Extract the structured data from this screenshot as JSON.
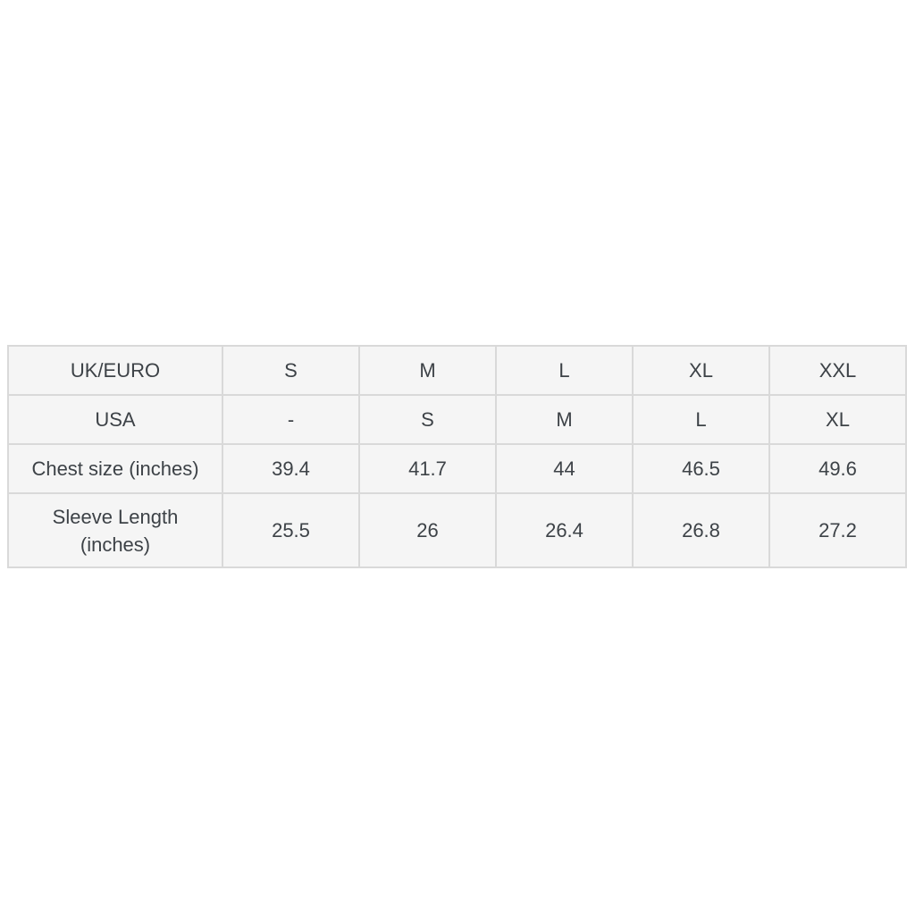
{
  "page": {
    "background": "#ffffff"
  },
  "table": {
    "name": "garment-size-chart",
    "colors": {
      "cell_background": "#f5f5f5",
      "border": "#d9d9d9",
      "text": "#3d4247"
    },
    "rows": [
      {
        "label": "UK/EURO",
        "values": [
          "S",
          "M",
          "L",
          "XL",
          "XXL"
        ]
      },
      {
        "label": "USA",
        "values": [
          "-",
          "S",
          "M",
          "L",
          "XL"
        ]
      },
      {
        "label": "Chest size (inches)",
        "values": [
          "39.4",
          "41.7",
          "44",
          "46.5",
          "49.6"
        ]
      },
      {
        "label": "Sleeve Length (inches)",
        "values": [
          "25.5",
          "26",
          "26.4",
          "26.8",
          "27.2"
        ]
      }
    ]
  },
  "chart_data": {
    "type": "table",
    "title": "",
    "row_headers": [
      "UK/EURO",
      "USA",
      "Chest size (inches)",
      "Sleeve Length (inches)"
    ],
    "columns": [
      "S",
      "M",
      "L",
      "XL",
      "XXL"
    ],
    "rows": [
      [
        "S",
        "M",
        "L",
        "XL",
        "XXL"
      ],
      [
        "-",
        "S",
        "M",
        "L",
        "XL"
      ],
      [
        39.4,
        41.7,
        44,
        46.5,
        49.6
      ],
      [
        25.5,
        26,
        26.4,
        26.8,
        27.2
      ]
    ],
    "layout_hints": {
      "grid": true,
      "cell_background": "#f5f5f5",
      "border_color": "#d9d9d9",
      "text_align": "center"
    }
  }
}
